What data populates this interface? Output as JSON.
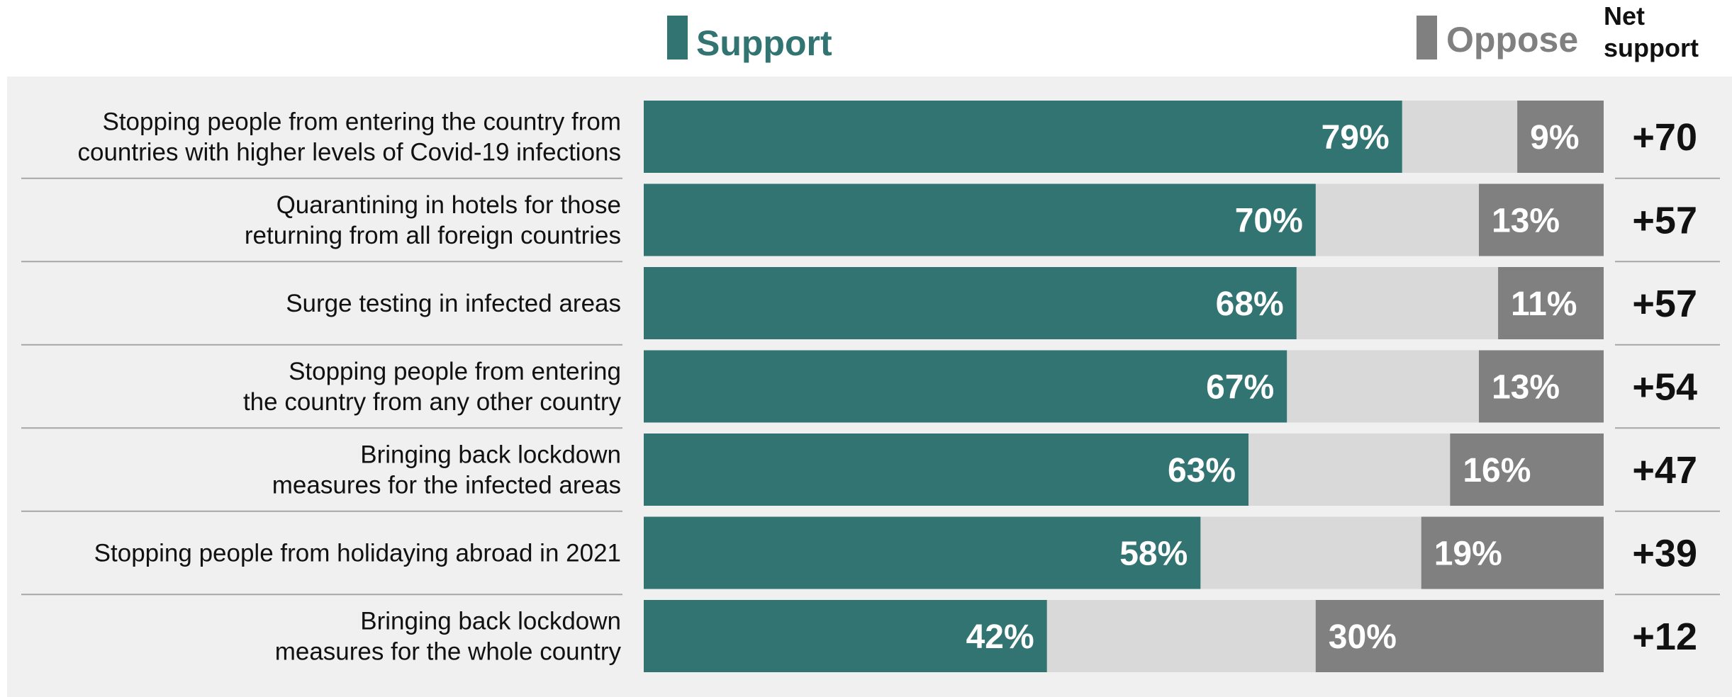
{
  "chart_data": {
    "type": "bar",
    "stacked": true,
    "orientation": "horizontal",
    "categories": [
      [
        "Stopping people from entering the country from",
        "countries with higher levels of Covid-19 infections"
      ],
      [
        "Quarantining in hotels for those",
        "returning from all foreign countries"
      ],
      [
        "Surge testing in infected areas"
      ],
      [
        "Stopping people from entering",
        "the country from any other country"
      ],
      [
        "Bringing back lockdown",
        "measures for the infected areas"
      ],
      [
        "Stopping people from holidaying abroad in 2021"
      ],
      [
        "Bringing back lockdown",
        "measures for the whole country"
      ]
    ],
    "series": [
      {
        "name": "Support",
        "color": "#317472",
        "values": [
          79,
          70,
          68,
          67,
          63,
          58,
          42
        ]
      },
      {
        "name": "Oppose",
        "color": "#808080",
        "values": [
          9,
          13,
          11,
          13,
          16,
          19,
          30
        ]
      }
    ],
    "remainder_color": "#d9d9d9",
    "net_support": {
      "header": [
        "Net",
        "support"
      ],
      "values": [
        "+70",
        "+57",
        "+57",
        "+54",
        "+47",
        "+39",
        "+12"
      ]
    },
    "value_suffix": "%",
    "xlim": [
      0,
      100
    ],
    "legend_position": "top",
    "grid": false
  },
  "colors": {
    "panel_background": "#f0f0f0",
    "row_divider": "#a6a6a6",
    "support_label": "#317472",
    "oppose_label": "#808080"
  }
}
